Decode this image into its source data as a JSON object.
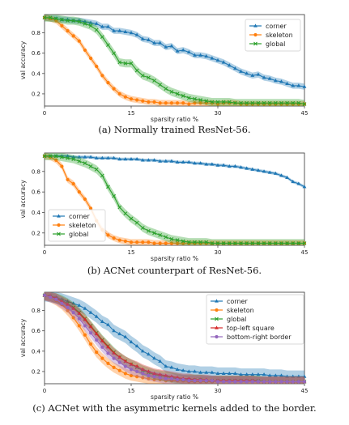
{
  "chart_data": [
    {
      "type": "line",
      "caption": "(a) Normally trained ResNet-56.",
      "xlabel": "sparsity ratio %",
      "ylabel": "val accuracy",
      "xlim": [
        0,
        45
      ],
      "ylim": [
        0.08,
        0.98
      ],
      "xticks": [
        0,
        15,
        30,
        45
      ],
      "yticks": [
        0.2,
        0.4,
        0.6,
        0.8
      ],
      "legend_position": "top-right",
      "x": [
        0,
        1,
        2,
        3,
        4,
        5,
        6,
        7,
        8,
        9,
        10,
        11,
        12,
        13,
        14,
        15,
        16,
        17,
        18,
        19,
        20,
        21,
        22,
        23,
        24,
        25,
        26,
        27,
        28,
        29,
        30,
        31,
        32,
        33,
        34,
        35,
        36,
        37,
        38,
        39,
        40,
        41,
        42,
        43,
        44,
        45
      ],
      "series": [
        {
          "name": "corner",
          "color": "#1f77b4",
          "marker": "triangle",
          "values": [
            0.95,
            0.94,
            0.94,
            0.93,
            0.93,
            0.92,
            0.92,
            0.91,
            0.9,
            0.89,
            0.86,
            0.86,
            0.82,
            0.82,
            0.81,
            0.8,
            0.78,
            0.74,
            0.73,
            0.7,
            0.7,
            0.66,
            0.67,
            0.62,
            0.63,
            0.61,
            0.58,
            0.58,
            0.57,
            0.55,
            0.53,
            0.51,
            0.48,
            0.45,
            0.42,
            0.4,
            0.38,
            0.39,
            0.36,
            0.35,
            0.33,
            0.32,
            0.3,
            0.28,
            0.28,
            0.27
          ],
          "band": 0.03
        },
        {
          "name": "skeleton",
          "color": "#ff7f0e",
          "marker": "circle",
          "values": [
            0.95,
            0.94,
            0.92,
            0.87,
            0.82,
            0.77,
            0.72,
            0.63,
            0.55,
            0.47,
            0.38,
            0.31,
            0.25,
            0.2,
            0.17,
            0.15,
            0.14,
            0.13,
            0.12,
            0.12,
            0.11,
            0.11,
            0.11,
            0.11,
            0.11,
            0.1,
            0.11,
            0.11,
            0.11,
            0.11,
            0.1,
            0.11,
            0.11,
            0.11,
            0.1,
            0.1,
            0.1,
            0.1,
            0.1,
            0.1,
            0.1,
            0.1,
            0.1,
            0.1,
            0.1,
            0.1
          ],
          "band": 0.03
        },
        {
          "name": "global",
          "color": "#2ca02c",
          "marker": "x",
          "values": [
            0.95,
            0.95,
            0.94,
            0.93,
            0.92,
            0.92,
            0.91,
            0.89,
            0.87,
            0.83,
            0.76,
            0.68,
            0.6,
            0.51,
            0.5,
            0.5,
            0.43,
            0.38,
            0.36,
            0.33,
            0.29,
            0.25,
            0.22,
            0.2,
            0.18,
            0.16,
            0.15,
            0.14,
            0.13,
            0.12,
            0.12,
            0.12,
            0.12,
            0.11,
            0.11,
            0.11,
            0.11,
            0.11,
            0.11,
            0.11,
            0.11,
            0.11,
            0.11,
            0.11,
            0.11,
            0.1
          ],
          "band": 0.04
        }
      ]
    },
    {
      "type": "line",
      "caption": "(b) ACNet counterpart of ResNet-56.",
      "xlabel": "sparsity ratio %",
      "ylabel": "val accuracy",
      "xlim": [
        0,
        45
      ],
      "ylim": [
        0.08,
        0.98
      ],
      "xticks": [
        0,
        15,
        30,
        45
      ],
      "yticks": [
        0.2,
        0.4,
        0.6,
        0.8
      ],
      "legend_position": "center-left",
      "x": [
        0,
        1,
        2,
        3,
        4,
        5,
        6,
        7,
        8,
        9,
        10,
        11,
        12,
        13,
        14,
        15,
        16,
        17,
        18,
        19,
        20,
        21,
        22,
        23,
        24,
        25,
        26,
        27,
        28,
        29,
        30,
        31,
        32,
        33,
        34,
        35,
        36,
        37,
        38,
        39,
        40,
        41,
        42,
        43,
        44,
        45
      ],
      "series": [
        {
          "name": "corner",
          "color": "#1f77b4",
          "marker": "triangle",
          "values": [
            0.95,
            0.95,
            0.95,
            0.95,
            0.95,
            0.94,
            0.94,
            0.94,
            0.94,
            0.93,
            0.93,
            0.93,
            0.93,
            0.92,
            0.92,
            0.92,
            0.92,
            0.91,
            0.91,
            0.91,
            0.9,
            0.9,
            0.9,
            0.89,
            0.89,
            0.89,
            0.88,
            0.88,
            0.87,
            0.87,
            0.86,
            0.86,
            0.85,
            0.85,
            0.84,
            0.83,
            0.82,
            0.81,
            0.8,
            0.79,
            0.78,
            0.76,
            0.74,
            0.7,
            0.68,
            0.65
          ],
          "band": 0.015
        },
        {
          "name": "skeleton",
          "color": "#ff7f0e",
          "marker": "circle",
          "values": [
            0.95,
            0.94,
            0.91,
            0.85,
            0.72,
            0.68,
            0.6,
            0.53,
            0.44,
            0.32,
            0.23,
            0.18,
            0.15,
            0.13,
            0.12,
            0.11,
            0.11,
            0.11,
            0.11,
            0.1,
            0.1,
            0.1,
            0.1,
            0.1,
            0.1,
            0.1,
            0.1,
            0.1,
            0.1,
            0.1,
            0.1,
            0.1,
            0.1,
            0.1,
            0.1,
            0.1,
            0.1,
            0.1,
            0.1,
            0.1,
            0.1,
            0.1,
            0.1,
            0.1,
            0.1,
            0.1
          ],
          "band": 0.03
        },
        {
          "name": "global",
          "color": "#2ca02c",
          "marker": "x",
          "values": [
            0.95,
            0.95,
            0.95,
            0.94,
            0.93,
            0.92,
            0.9,
            0.88,
            0.85,
            0.82,
            0.76,
            0.65,
            0.56,
            0.45,
            0.39,
            0.34,
            0.3,
            0.25,
            0.22,
            0.2,
            0.18,
            0.16,
            0.14,
            0.13,
            0.12,
            0.11,
            0.11,
            0.11,
            0.11,
            0.1,
            0.1,
            0.1,
            0.1,
            0.1,
            0.1,
            0.1,
            0.1,
            0.1,
            0.1,
            0.1,
            0.1,
            0.1,
            0.1,
            0.1,
            0.1,
            0.1
          ],
          "band": 0.04
        }
      ]
    },
    {
      "type": "line",
      "caption": "(c) ACNet with the asymmetric kernels added to the border.",
      "xlabel": "sparsity ratio %",
      "ylabel": "val accuracy",
      "xlim": [
        0,
        45
      ],
      "ylim": [
        0.08,
        0.98
      ],
      "xticks": [
        0,
        15,
        30,
        45
      ],
      "yticks": [
        0.2,
        0.4,
        0.6,
        0.8
      ],
      "legend_position": "top-right",
      "x": [
        0,
        1,
        2,
        3,
        4,
        5,
        6,
        7,
        8,
        9,
        10,
        11,
        12,
        13,
        14,
        15,
        16,
        17,
        18,
        19,
        20,
        21,
        22,
        23,
        24,
        25,
        26,
        27,
        28,
        29,
        30,
        31,
        32,
        33,
        34,
        35,
        36,
        37,
        38,
        39,
        40,
        41,
        42,
        43,
        44,
        45
      ],
      "series": [
        {
          "name": "corner",
          "color": "#1f77b4",
          "marker": "triangle",
          "values": [
            0.95,
            0.94,
            0.93,
            0.91,
            0.89,
            0.87,
            0.85,
            0.82,
            0.78,
            0.74,
            0.69,
            0.66,
            0.6,
            0.57,
            0.54,
            0.49,
            0.45,
            0.4,
            0.37,
            0.33,
            0.3,
            0.25,
            0.24,
            0.22,
            0.21,
            0.2,
            0.2,
            0.19,
            0.19,
            0.19,
            0.18,
            0.18,
            0.18,
            0.18,
            0.17,
            0.17,
            0.17,
            0.17,
            0.17,
            0.16,
            0.16,
            0.16,
            0.15,
            0.15,
            0.15,
            0.15
          ],
          "band": 0.06
        },
        {
          "name": "skeleton",
          "color": "#ff7f0e",
          "marker": "circle",
          "values": [
            0.95,
            0.93,
            0.9,
            0.86,
            0.8,
            0.73,
            0.65,
            0.56,
            0.47,
            0.39,
            0.33,
            0.28,
            0.24,
            0.21,
            0.18,
            0.16,
            0.15,
            0.14,
            0.13,
            0.12,
            0.12,
            0.11,
            0.11,
            0.11,
            0.11,
            0.1,
            0.1,
            0.1,
            0.1,
            0.1,
            0.1,
            0.1,
            0.1,
            0.1,
            0.1,
            0.1,
            0.1,
            0.1,
            0.1,
            0.1,
            0.1,
            0.1,
            0.1,
            0.1,
            0.1,
            0.1
          ],
          "band": 0.05
        },
        {
          "name": "global",
          "color": "#2ca02c",
          "marker": "x",
          "values": [
            0.95,
            0.94,
            0.92,
            0.9,
            0.87,
            0.83,
            0.78,
            0.72,
            0.65,
            0.58,
            0.51,
            0.45,
            0.39,
            0.34,
            0.3,
            0.27,
            0.24,
            0.21,
            0.19,
            0.17,
            0.16,
            0.15,
            0.14,
            0.13,
            0.12,
            0.12,
            0.12,
            0.12,
            0.11,
            0.11,
            0.11,
            0.11,
            0.11,
            0.11,
            0.11,
            0.11,
            0.11,
            0.11,
            0.1,
            0.1,
            0.1,
            0.1,
            0.1,
            0.1,
            0.1,
            0.1
          ],
          "band": 0.05
        },
        {
          "name": "top-left square",
          "color": "#d62728",
          "marker": "triangle",
          "values": [
            0.95,
            0.94,
            0.92,
            0.89,
            0.86,
            0.82,
            0.77,
            0.71,
            0.64,
            0.57,
            0.5,
            0.44,
            0.38,
            0.34,
            0.3,
            0.27,
            0.25,
            0.22,
            0.2,
            0.18,
            0.17,
            0.16,
            0.15,
            0.14,
            0.13,
            0.13,
            0.12,
            0.12,
            0.12,
            0.11,
            0.11,
            0.11,
            0.11,
            0.11,
            0.11,
            0.11,
            0.11,
            0.1,
            0.1,
            0.1,
            0.1,
            0.1,
            0.1,
            0.1,
            0.1,
            0.1
          ],
          "band": 0.05
        },
        {
          "name": "bottom-right border",
          "color": "#9467bd",
          "marker": "circle",
          "values": [
            0.95,
            0.93,
            0.91,
            0.87,
            0.83,
            0.78,
            0.72,
            0.65,
            0.58,
            0.51,
            0.44,
            0.38,
            0.33,
            0.29,
            0.25,
            0.22,
            0.2,
            0.18,
            0.16,
            0.15,
            0.14,
            0.13,
            0.13,
            0.12,
            0.12,
            0.11,
            0.11,
            0.11,
            0.11,
            0.11,
            0.1,
            0.1,
            0.1,
            0.1,
            0.1,
            0.1,
            0.1,
            0.1,
            0.1,
            0.1,
            0.1,
            0.1,
            0.1,
            0.1,
            0.1,
            0.1
          ],
          "band": 0.05
        }
      ]
    }
  ]
}
